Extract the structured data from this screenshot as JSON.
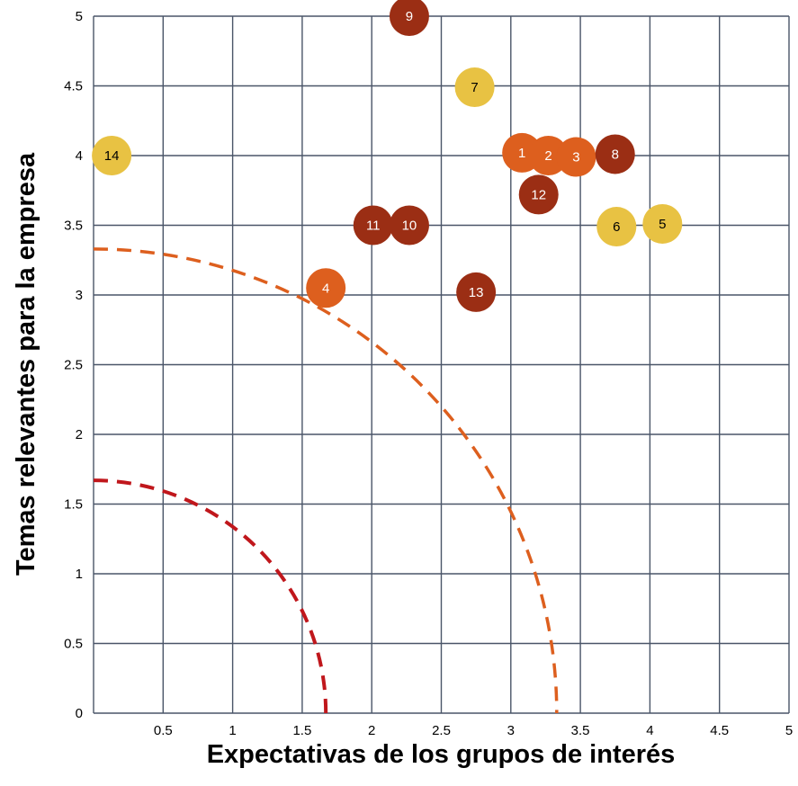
{
  "chart_data": {
    "type": "scatter",
    "title": "",
    "xlabel": "Expectativas de los grupos de interés",
    "ylabel": "Temas relevantes para la empresa",
    "xlim": [
      0,
      5
    ],
    "ylim": [
      0,
      5
    ],
    "x_ticks": [
      "0.5",
      "1",
      "1.5",
      "2",
      "2.5",
      "3",
      "3.5",
      "4",
      "4.5",
      "5"
    ],
    "y_ticks": [
      "0",
      "0.5",
      "1",
      "1.5",
      "2",
      "2.5",
      "3",
      "3.5",
      "4",
      "4.5",
      "5"
    ],
    "grid": true,
    "legend": "none",
    "colors": {
      "yellow": "#e8c243",
      "orange": "#dd5f1e",
      "darkred": "#9b2e14",
      "curve_outer": "#dd5f1e",
      "curve_inner": "#c0171c",
      "grid": "#4a5568"
    },
    "points": [
      {
        "label": "1",
        "x": 3.08,
        "y": 4.02,
        "color": "orange"
      },
      {
        "label": "2",
        "x": 3.27,
        "y": 4.0,
        "color": "orange"
      },
      {
        "label": "3",
        "x": 3.47,
        "y": 3.99,
        "color": "orange"
      },
      {
        "label": "4",
        "x": 1.67,
        "y": 3.05,
        "color": "orange"
      },
      {
        "label": "5",
        "x": 4.09,
        "y": 3.51,
        "color": "yellow"
      },
      {
        "label": "6",
        "x": 3.76,
        "y": 3.49,
        "color": "yellow"
      },
      {
        "label": "7",
        "x": 2.74,
        "y": 4.49,
        "color": "yellow"
      },
      {
        "label": "8",
        "x": 3.75,
        "y": 4.01,
        "color": "darkred"
      },
      {
        "label": "9",
        "x": 2.27,
        "y": 5.0,
        "color": "darkred"
      },
      {
        "label": "10",
        "x": 2.27,
        "y": 3.5,
        "color": "darkred"
      },
      {
        "label": "11",
        "x": 2.01,
        "y": 3.5,
        "color": "darkred"
      },
      {
        "label": "12",
        "x": 3.2,
        "y": 3.72,
        "color": "darkred"
      },
      {
        "label": "13",
        "x": 2.75,
        "y": 3.02,
        "color": "darkred"
      },
      {
        "label": "14",
        "x": 0.13,
        "y": 4.0,
        "color": "yellow"
      }
    ],
    "curves": [
      {
        "radius": 3.33,
        "color": "curve_outer",
        "style": "dashed"
      },
      {
        "radius": 1.67,
        "color": "curve_inner",
        "style": "dashed"
      }
    ]
  }
}
